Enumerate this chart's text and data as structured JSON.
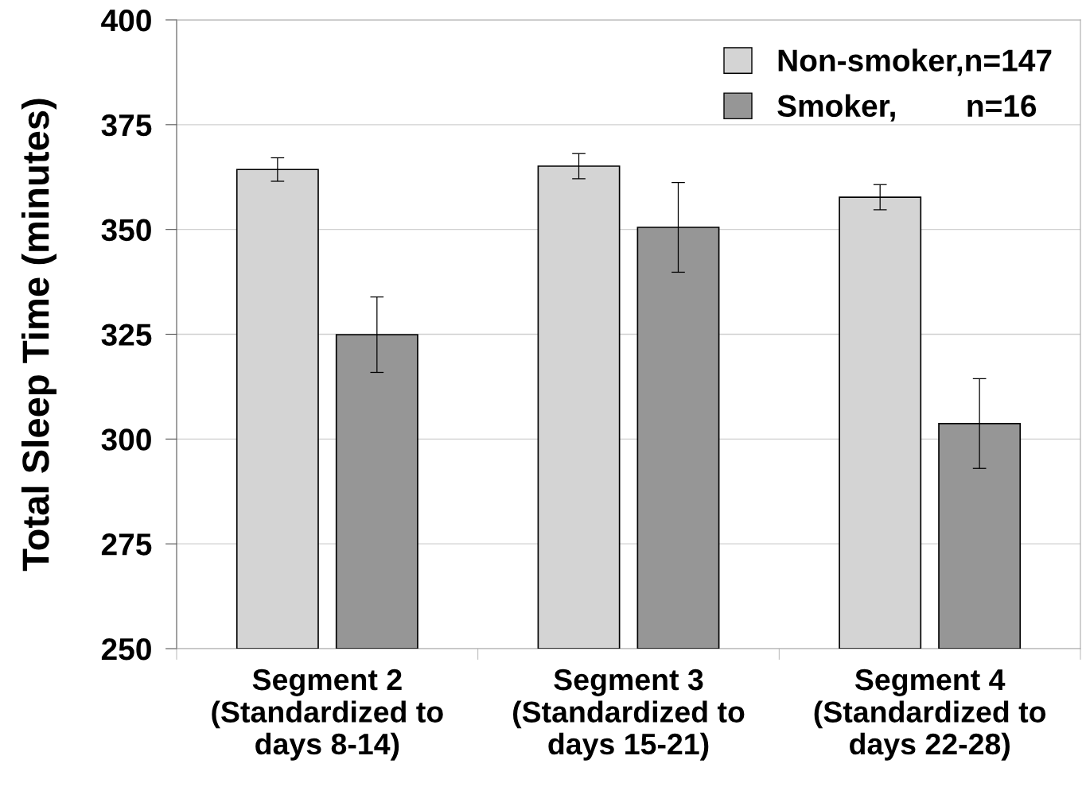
{
  "chart_data": {
    "type": "bar",
    "ylabel": "Total Sleep Time (minutes)",
    "categories": [
      "Segment 2\n(Standardized to\ndays 8-14)",
      "Segment 3\n(Standardized to\ndays 15-21)",
      "Segment 4\n(Standardized to\ndays 22-28)"
    ],
    "series": [
      {
        "name": "Non-smoker,n=147",
        "color": "#d4d4d4",
        "values": [
          364.3,
          365.1,
          357.7
        ],
        "errors": [
          2.8,
          3,
          3
        ]
      },
      {
        "name": "Smoker,        n=16",
        "color": "#969696",
        "values": [
          324.9,
          350.5,
          303.7
        ],
        "errors": [
          9,
          10.7,
          10.7
        ]
      }
    ],
    "ylim": [
      250,
      400
    ],
    "yticks": [
      250,
      275,
      300,
      325,
      350,
      375,
      400
    ],
    "grid": "y",
    "legend": "top right"
  }
}
